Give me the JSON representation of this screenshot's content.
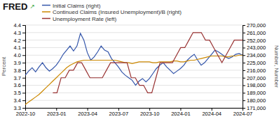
{
  "chart_data": {
    "type": "line",
    "title": "FRED",
    "annotations": [
      "↗"
    ],
    "ylabel": "Percent",
    "y2label": "Number, Number",
    "xlim": [
      0,
      63
    ],
    "xticks": [
      {
        "value": 0,
        "label": "2022-10"
      },
      {
        "value": 9,
        "label": "2023-01"
      },
      {
        "value": 18,
        "label": "2023-04"
      },
      {
        "value": 27,
        "label": "2023-07"
      },
      {
        "value": 36,
        "label": "2023-10"
      },
      {
        "value": 45,
        "label": "2024-01"
      },
      {
        "value": 54,
        "label": "2024-04"
      },
      {
        "value": 63,
        "label": "2024-07"
      }
    ],
    "ylim": [
      3.3,
      4.4
    ],
    "yticks": [
      3.3,
      3.4,
      3.5,
      3.6,
      3.7,
      3.8,
      3.9,
      {
        "value": 4.0,
        "label": "4.0"
      },
      4.1,
      4.2,
      4.3,
      4.4
    ],
    "y2lim": [
      171000,
      270000
    ],
    "y2ticks": [
      {
        "value": 171000,
        "label": "171,000"
      },
      {
        "value": 180000,
        "label": "180,000"
      },
      {
        "value": 189000,
        "label": "189,000"
      },
      {
        "value": 198000,
        "label": "198,000"
      },
      {
        "value": 207000,
        "label": "207,000"
      },
      {
        "value": 216000,
        "label": "216,000"
      },
      {
        "value": 225000,
        "label": "225,000"
      },
      {
        "value": 234000,
        "label": "234,000"
      },
      {
        "value": 243000,
        "label": "243,000"
      },
      {
        "value": 252000,
        "label": "252,000"
      },
      {
        "value": 261000,
        "label": "261,000"
      },
      {
        "value": 270000,
        "label": "270,000"
      }
    ],
    "grid": true,
    "legend": "top-left",
    "series": [
      {
        "name": "Initial Claims (right)",
        "color": "#3355aa",
        "axis": "y2",
        "x": [
          0,
          1,
          2,
          3,
          4,
          5,
          6,
          7,
          8,
          9,
          10,
          11,
          12,
          13,
          14,
          15,
          16,
          17,
          18,
          19,
          20,
          21,
          22,
          23,
          24,
          25,
          26,
          27,
          28,
          29,
          30,
          31,
          32,
          33,
          34,
          35,
          36,
          37,
          38,
          39,
          40,
          41,
          42,
          43,
          44,
          45,
          46,
          47,
          48,
          49,
          50,
          51,
          52,
          53,
          54,
          55,
          56,
          57,
          58,
          59,
          60,
          61,
          62,
          63
        ],
        "values": [
          210000,
          215000,
          219000,
          214000,
          220000,
          225000,
          219000,
          215000,
          218000,
          222000,
          228000,
          235000,
          240000,
          245000,
          239000,
          245000,
          260000,
          252000,
          237000,
          228000,
          232000,
          238000,
          245000,
          240000,
          238000,
          230000,
          225000,
          220000,
          214000,
          210000,
          207000,
          204000,
          198000,
          203000,
          206000,
          202000,
          206000,
          212000,
          218000,
          222000,
          225000,
          220000,
          216000,
          212000,
          215000,
          218000,
          222000,
          228000,
          232000,
          235000,
          228000,
          222000,
          225000,
          230000,
          235000,
          240000,
          238000,
          235000,
          232000,
          230000,
          232000,
          235000,
          236000,
          234000
        ]
      },
      {
        "name": "Continued Claims (Insured Unemployment)/B (right)",
        "color": "#cc8800",
        "axis": "y2",
        "x": [
          0,
          1,
          2,
          3,
          4,
          5,
          6,
          7,
          8,
          9,
          10,
          11,
          12,
          13,
          14,
          15,
          16,
          17,
          18,
          19,
          20,
          21,
          22,
          23,
          24,
          25,
          26,
          27,
          28,
          29,
          30,
          31,
          32,
          33,
          34,
          35,
          36,
          37,
          38,
          39,
          40,
          41,
          42,
          43,
          44,
          45,
          46,
          47,
          48,
          49,
          50,
          51,
          52,
          53,
          54,
          55,
          56,
          57,
          58,
          59,
          60,
          61,
          62,
          63
        ],
        "values": [
          175000,
          178000,
          181000,
          184000,
          187000,
          191000,
          195000,
          199000,
          203000,
          207000,
          211000,
          215000,
          219000,
          222000,
          224000,
          226000,
          227000,
          228000,
          228000,
          228000,
          228000,
          228000,
          228000,
          228000,
          228000,
          228000,
          228000,
          227000,
          226000,
          225000,
          225000,
          224000,
          225000,
          226000,
          226000,
          226000,
          226000,
          225000,
          225000,
          226000,
          226000,
          226000,
          226000,
          227000,
          227000,
          226000,
          226000,
          227000,
          228000,
          228000,
          229000,
          230000,
          231000,
          232000,
          233000,
          233000,
          233000,
          233000,
          232000,
          232000,
          233000,
          233000,
          234000,
          234000
        ]
      },
      {
        "name": "Unemployment Rate (left)",
        "color": "#993333",
        "axis": "y",
        "x": [
          8,
          9.195652,
          10.391304,
          11.586957,
          12.782609,
          13.978261,
          15.173913,
          16.369565,
          17.565217,
          18.76087,
          19.956522,
          21.152174,
          22.347826,
          23.543478,
          24.73913,
          25.934783,
          27.130435,
          28.326087,
          29.521739,
          30.717391,
          31.913043,
          33.108696,
          34.304348,
          35.5,
          36.695652,
          37.891304,
          39.086957,
          40.282609,
          41.478261,
          42.673913,
          43.869565,
          45.065217,
          46.26087,
          47.456522,
          48.652174,
          49.847826,
          51.043478,
          52.23913,
          53.434783,
          54.630435,
          55.826087,
          57.021739,
          58.217391,
          59.413043,
          60.608696,
          61.804348,
          63
        ],
        "values": [
          3.5,
          3.5,
          3.7,
          3.7,
          3.8,
          3.8,
          3.9,
          3.9,
          3.8,
          3.7,
          3.7,
          3.7,
          3.7,
          3.8,
          3.9,
          3.9,
          3.9,
          3.9,
          3.9,
          3.7,
          3.7,
          3.6,
          3.6,
          3.5,
          3.5,
          3.7,
          3.9,
          3.9,
          3.9,
          3.9,
          4.0,
          4.1,
          4.1,
          4.2,
          4.3,
          4.3,
          4.3,
          4.2,
          4.2,
          4.1,
          4.0,
          3.9,
          4.0,
          4.1,
          4.2,
          4.2,
          4.2
        ]
      }
    ]
  }
}
